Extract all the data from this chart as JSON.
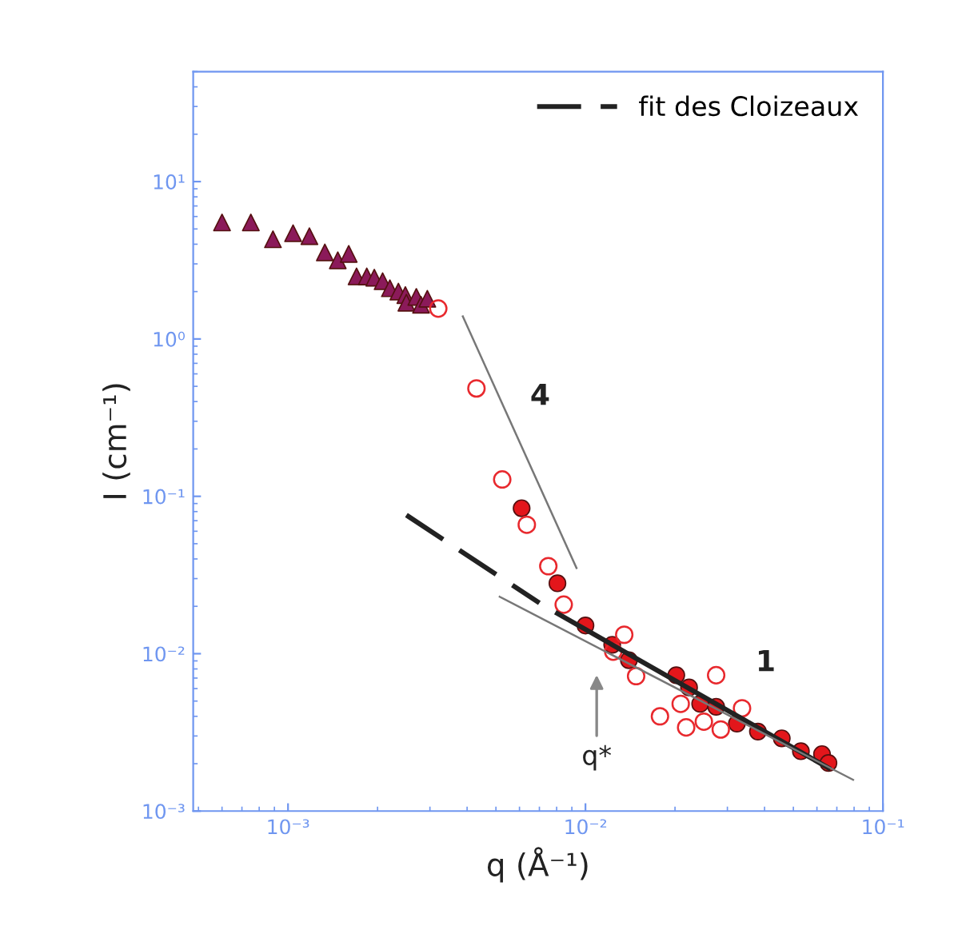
{
  "chart_data": {
    "type": "scatter",
    "xlabel": "q (Å⁻¹)",
    "ylabel": "I (cm⁻¹)",
    "log": "xy",
    "xlim": [
      0.00048,
      0.1
    ],
    "ylim": [
      0.001,
      50
    ],
    "xticks": [
      {
        "value": 0.001,
        "label": "10⁻³"
      },
      {
        "value": 0.01,
        "label": "10⁻²"
      },
      {
        "value": 0.1,
        "label": "10⁻¹"
      }
    ],
    "yticks": [
      {
        "value": 0.001,
        "label": "10⁻³"
      },
      {
        "value": 0.01,
        "label": "10⁻²"
      },
      {
        "value": 0.1,
        "label": "10⁻¹"
      },
      {
        "value": 1,
        "label": "10⁰"
      },
      {
        "value": 10,
        "label": "10¹"
      }
    ],
    "grid": false,
    "legend": "top right",
    "series": [
      {
        "type": "scatter",
        "marker": "triangle",
        "color": "#8b1a5a",
        "x": [
          0.0006,
          0.00075,
          0.00089,
          0.00104,
          0.00118,
          0.00133,
          0.00147,
          0.0016,
          0.0017,
          0.00184,
          0.00195,
          0.00208,
          0.0022,
          0.00235,
          0.00248,
          0.0025,
          0.0027,
          0.0028,
          0.00294
        ],
        "values": [
          5.5,
          5.5,
          4.3,
          4.7,
          4.5,
          3.55,
          3.16,
          3.47,
          2.5,
          2.5,
          2.45,
          2.33,
          2.1,
          2.0,
          1.9,
          1.7,
          1.85,
          1.65,
          1.8
        ]
      },
      {
        "type": "scatter",
        "marker": "open circle",
        "color": "#e8292e",
        "x": [
          0.0032,
          0.0043,
          0.00525,
          0.00635,
          0.0075,
          0.00845,
          0.0124,
          0.0135,
          0.0148,
          0.0178,
          0.0209,
          0.0218,
          0.025,
          0.0275,
          0.0285,
          0.0336
        ],
        "values": [
          1.56,
          0.485,
          0.128,
          0.066,
          0.036,
          0.0205,
          0.0103,
          0.0132,
          0.0072,
          0.004,
          0.0048,
          0.0034,
          0.0037,
          0.0073,
          0.0033,
          0.0045
        ]
      },
      {
        "type": "scatter",
        "marker": "circle",
        "color": "#e3161b",
        "x": [
          0.0061,
          0.00805,
          0.01,
          0.0123,
          0.014,
          0.0202,
          0.0223,
          0.0243,
          0.0275,
          0.0323,
          0.038,
          0.0457,
          0.053,
          0.0624,
          0.0656
        ],
        "values": [
          0.084,
          0.028,
          0.0151,
          0.0114,
          0.0091,
          0.0073,
          0.0061,
          0.0048,
          0.0046,
          0.0036,
          0.0032,
          0.0029,
          0.0024,
          0.0023,
          0.00202
        ]
      },
      {
        "type": "line",
        "name": "fit des Cloizeaux",
        "line_style": "dashed",
        "color": "#222222",
        "x": [
          0.0025,
          0.007
        ],
        "values": [
          0.076,
          0.021
        ]
      },
      {
        "type": "line",
        "line_style": "solid",
        "color": "#222222",
        "x": [
          0.00805,
          0.0656
        ],
        "values": [
          0.018,
          0.00188
        ]
      },
      {
        "type": "line",
        "line_style": "solid",
        "color": "#777777",
        "x": [
          0.00387,
          0.00933
        ],
        "values": [
          1.39,
          0.035
        ]
      },
      {
        "type": "line",
        "line_style": "solid",
        "color": "#777777",
        "x": [
          0.00515,
          0.0794
        ],
        "values": [
          0.023,
          0.00158
        ]
      }
    ],
    "annotations": [
      "4",
      "1",
      "q*"
    ]
  }
}
